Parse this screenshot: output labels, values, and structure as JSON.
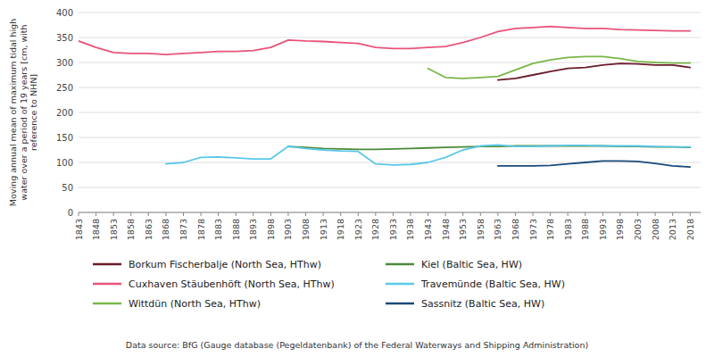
{
  "chart_data": {
    "type": "line",
    "ylabel": "Moving annual mean of maximum tidal high\nwater over a period of 19 years [cm, with\nreference to NHN]",
    "source": "Data source: BfG (Gauge database (Pegeldatenbank) of the Federal Waterways and Shipping Administration)",
    "x": [
      1843,
      1848,
      1853,
      1858,
      1863,
      1868,
      1873,
      1878,
      1883,
      1888,
      1893,
      1898,
      1903,
      1908,
      1913,
      1918,
      1923,
      1928,
      1933,
      1938,
      1943,
      1948,
      1953,
      1958,
      1963,
      1968,
      1973,
      1978,
      1983,
      1988,
      1993,
      1998,
      2003,
      2008,
      2013,
      2018
    ],
    "series": [
      {
        "name": "Borkum Fischerbalje (North Sea, HThw)",
        "color": "#6B1A2A",
        "values": [
          null,
          null,
          null,
          null,
          null,
          null,
          null,
          null,
          null,
          null,
          null,
          null,
          null,
          null,
          null,
          null,
          null,
          null,
          null,
          null,
          null,
          null,
          null,
          null,
          265,
          268,
          275,
          282,
          288,
          290,
          295,
          298,
          297,
          295,
          295,
          290
        ]
      },
      {
        "name": "Cuxhaven Stäubenhöft (North Sea, HThw)",
        "color": "#E8537A",
        "values": [
          343,
          330,
          320,
          318,
          318,
          316,
          318,
          320,
          322,
          322,
          324,
          330,
          345,
          343,
          342,
          340,
          338,
          330,
          328,
          328,
          330,
          332,
          340,
          350,
          362,
          368,
          370,
          372,
          370,
          368,
          368,
          366,
          365,
          364,
          363,
          363
        ]
      },
      {
        "name": "Wittdün (North Sea, HThw)",
        "color": "#7AB648",
        "values": [
          null,
          null,
          null,
          null,
          null,
          null,
          null,
          null,
          null,
          null,
          null,
          null,
          null,
          null,
          null,
          null,
          null,
          null,
          null,
          null,
          288,
          270,
          268,
          270,
          272,
          285,
          298,
          305,
          310,
          312,
          312,
          308,
          302,
          300,
          299,
          299
        ]
      },
      {
        "name": "Kiel (Baltic Sea, HW)",
        "color": "#4A8A3A",
        "values": [
          null,
          null,
          null,
          null,
          null,
          null,
          null,
          null,
          null,
          null,
          null,
          null,
          132,
          130,
          128,
          127,
          126,
          126,
          127,
          128,
          129,
          130,
          131,
          132,
          132,
          133,
          133,
          133,
          133,
          133,
          133,
          132,
          132,
          131,
          131,
          130
        ]
      },
      {
        "name": "Travemünde (Baltic Sea, HW)",
        "color": "#5BC8E8",
        "values": [
          null,
          null,
          null,
          null,
          null,
          97,
          100,
          110,
          111,
          109,
          107,
          107,
          132,
          128,
          125,
          123,
          122,
          97,
          95,
          96,
          100,
          110,
          125,
          133,
          135,
          132,
          132,
          133,
          134,
          134,
          133,
          133,
          133,
          132,
          131,
          131
        ]
      },
      {
        "name": "Sassnitz (Baltic Sea, HW)",
        "color": "#1A4A7A",
        "values": [
          null,
          null,
          null,
          null,
          null,
          null,
          null,
          null,
          null,
          null,
          null,
          null,
          null,
          null,
          null,
          null,
          null,
          null,
          null,
          null,
          null,
          null,
          null,
          null,
          93,
          93,
          93,
          94,
          97,
          100,
          103,
          103,
          102,
          98,
          93,
          91
        ]
      }
    ],
    "xlim": [
      1843,
      2021
    ],
    "xticks": [
      1843,
      1848,
      1853,
      1858,
      1863,
      1868,
      1873,
      1878,
      1883,
      1888,
      1893,
      1898,
      1903,
      1908,
      1913,
      1918,
      1923,
      1928,
      1933,
      1938,
      1943,
      1948,
      1953,
      1958,
      1963,
      1968,
      1973,
      1978,
      1983,
      1988,
      1993,
      1998,
      2003,
      2008,
      2013,
      2018
    ],
    "ylim": [
      0,
      400
    ],
    "yticks": [
      0,
      50,
      100,
      150,
      200,
      250,
      300,
      350,
      400
    ],
    "grid": true,
    "legend": "bottom"
  }
}
